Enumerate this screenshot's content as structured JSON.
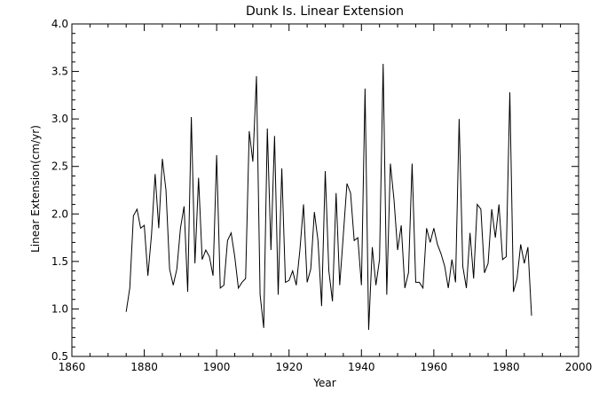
{
  "chart_data": {
    "type": "line",
    "title": "Dunk Is. Linear Extension",
    "xlabel": "Year",
    "ylabel": "Linear Extension(cm/yr)",
    "xlim": [
      1860,
      2000
    ],
    "ylim": [
      0.5,
      4.0
    ],
    "x_ticks": [
      1860,
      1880,
      1900,
      1920,
      1940,
      1960,
      1980,
      2000
    ],
    "x_tick_labels": [
      "1860",
      "1880",
      "1900",
      "1920",
      "1940",
      "1960",
      "1980",
      "2000"
    ],
    "y_ticks": [
      0.5,
      1.0,
      1.5,
      2.0,
      2.5,
      3.0,
      3.5,
      4.0
    ],
    "y_tick_labels": [
      "0.5",
      "1.0",
      "1.5",
      "2.0",
      "2.5",
      "3.0",
      "3.5",
      "4.0"
    ],
    "line_color": "#000000",
    "x": [
      1875,
      1876,
      1877,
      1878,
      1879,
      1880,
      1881,
      1882,
      1883,
      1884,
      1885,
      1886,
      1887,
      1888,
      1889,
      1890,
      1891,
      1892,
      1893,
      1894,
      1895,
      1896,
      1897,
      1898,
      1899,
      1900,
      1901,
      1902,
      1903,
      1904,
      1905,
      1906,
      1907,
      1908,
      1909,
      1910,
      1911,
      1912,
      1913,
      1914,
      1915,
      1916,
      1917,
      1918,
      1919,
      1920,
      1921,
      1922,
      1923,
      1924,
      1925,
      1926,
      1927,
      1928,
      1929,
      1930,
      1931,
      1932,
      1933,
      1934,
      1935,
      1936,
      1937,
      1938,
      1939,
      1940,
      1941,
      1942,
      1943,
      1944,
      1945,
      1946,
      1947,
      1948,
      1949,
      1950,
      1951,
      1952,
      1953,
      1954,
      1955,
      1956,
      1957,
      1958,
      1959,
      1960,
      1961,
      1962,
      1963,
      1964,
      1965,
      1966,
      1967,
      1968,
      1969,
      1970,
      1971,
      1972,
      1973,
      1974,
      1975,
      1976,
      1977,
      1978,
      1979,
      1980,
      1981,
      1982,
      1983,
      1984,
      1985,
      1986,
      1987
    ],
    "values": [
      0.97,
      1.22,
      1.98,
      2.05,
      1.85,
      1.88,
      1.35,
      1.78,
      2.42,
      1.85,
      2.58,
      2.25,
      1.42,
      1.25,
      1.42,
      1.85,
      2.08,
      1.18,
      3.02,
      1.48,
      2.38,
      1.52,
      1.62,
      1.55,
      1.35,
      2.62,
      1.22,
      1.25,
      1.72,
      1.8,
      1.55,
      1.22,
      1.28,
      1.32,
      2.87,
      2.55,
      3.45,
      1.15,
      0.8,
      2.9,
      1.62,
      2.82,
      1.15,
      2.48,
      1.28,
      1.3,
      1.4,
      1.25,
      1.62,
      2.1,
      1.28,
      1.42,
      2.02,
      1.72,
      1.03,
      2.45,
      1.4,
      1.08,
      2.22,
      1.25,
      1.78,
      2.32,
      2.22,
      1.72,
      1.75,
      1.25,
      3.32,
      0.78,
      1.65,
      1.25,
      1.52,
      3.58,
      1.15,
      2.53,
      2.15,
      1.62,
      1.88,
      1.22,
      1.38,
      2.53,
      1.28,
      1.28,
      1.22,
      1.85,
      1.7,
      1.85,
      1.68,
      1.58,
      1.45,
      1.22,
      1.52,
      1.28,
      3.0,
      1.45,
      1.22,
      1.8,
      1.32,
      2.1,
      2.05,
      1.38,
      1.48,
      2.05,
      1.75,
      2.1,
      1.52,
      1.55,
      3.28,
      1.18,
      1.32,
      1.68,
      1.48,
      1.65,
      0.93
    ]
  }
}
